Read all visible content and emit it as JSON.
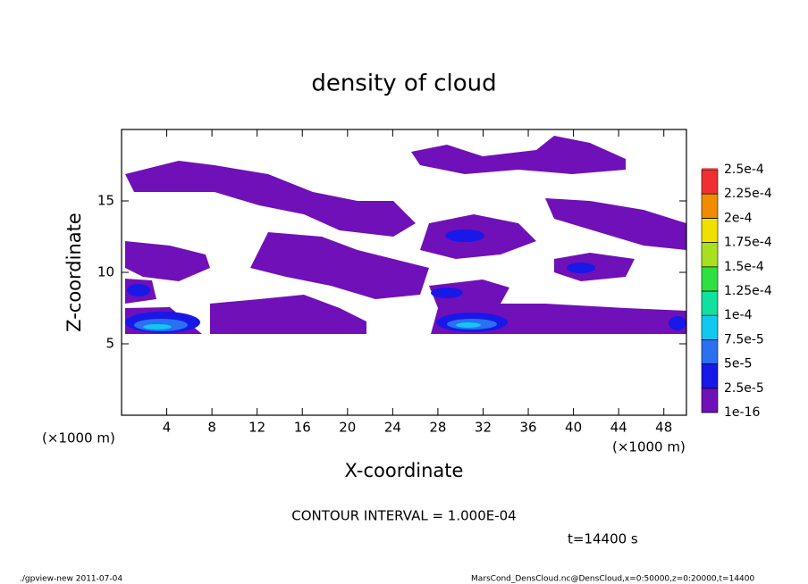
{
  "chart_data": {
    "type": "contour",
    "title": "density of cloud",
    "x_label": "X-coordinate",
    "y_label": "Z-coordinate",
    "x_unit": "(×1000 m)",
    "xlim": [
      0,
      50
    ],
    "xticks": [
      4,
      8,
      12,
      16,
      20,
      24,
      28,
      32,
      36,
      40,
      44,
      48
    ],
    "ylim": [
      0,
      20
    ],
    "yticks": [
      5,
      10,
      15
    ],
    "colorbar": {
      "levels": [
        {
          "value": 1e-16,
          "label": "1e-16"
        },
        {
          "value": 2.5e-05,
          "label": "2.5e-5"
        },
        {
          "value": 5e-05,
          "label": "5e-5"
        },
        {
          "value": 7.5e-05,
          "label": "7.5e-5"
        },
        {
          "value": 0.0001,
          "label": "1e-4"
        },
        {
          "value": 0.000125,
          "label": "1.25e-4"
        },
        {
          "value": 0.00015,
          "label": "1.5e-4"
        },
        {
          "value": 0.000175,
          "label": "1.75e-4"
        },
        {
          "value": 0.0002,
          "label": "2e-4"
        },
        {
          "value": 0.000225,
          "label": "2.25e-4"
        },
        {
          "value": 0.00025,
          "label": "2.5e-4"
        }
      ],
      "colors": [
        "#7010b8",
        "#1818e8",
        "#2a70f0",
        "#10c8f0",
        "#10e0a0",
        "#30e040",
        "#a8e020",
        "#f0e000",
        "#f08c00",
        "#f03030",
        "#f08080"
      ]
    },
    "annotations": [
      "CONTOUR INTERVAL = 1.000E-04",
      "t=14400 s"
    ],
    "footer_left": "./gpview-new  2011-07-04",
    "footer_right": "MarsCond_DensCloud.nc@DensCloud,x=0:50000,z=0:20000,t=14400"
  }
}
